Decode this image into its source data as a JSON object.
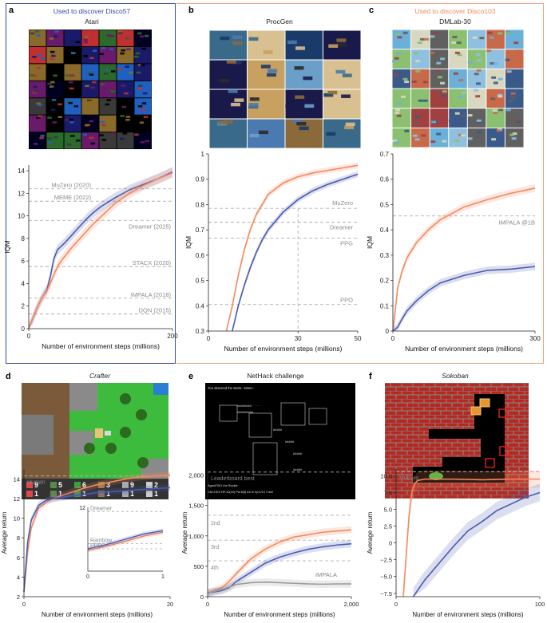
{
  "panels": {
    "a": {
      "letter": "a",
      "caption": "Used to discover Disco57",
      "title": "Atari"
    },
    "b": {
      "letter": "b",
      "title": "ProcGen"
    },
    "c": {
      "letter": "c",
      "caption": "Used to discover Disco103",
      "title": "DMLab-30"
    },
    "d": {
      "letter": "d",
      "title": "Crafter"
    },
    "e": {
      "letter": "e",
      "title": "NetHack challenge"
    },
    "f": {
      "letter": "f",
      "title": "Sokoban"
    }
  },
  "colors": {
    "disco": "#f4895f",
    "baseline": "#4a5bb0",
    "impala_gray": "#9a9a9a",
    "ref_line": "#b0b0b0",
    "frame_a": "#3b4aa0",
    "frame_c": "#f2a27c"
  },
  "nethack_screen_text": {
    "line1": "You descend the stairs.--More--",
    "status1": "Agent7001 the Rookie",
    "status2": "Dlvl:3 $:0 HP:10(10) Pw:5(5) AC:6 Xp:1/13 T:442"
  },
  "crafter_inventory": [
    "9",
    "5",
    "6",
    "3",
    "9",
    "2",
    "1",
    "1",
    "1",
    "1",
    "1",
    "1"
  ],
  "chart_data": [
    {
      "id": "a",
      "type": "line",
      "xlabel": "Number of environment steps (millions)",
      "ylabel": "IQM",
      "xlim": [
        0,
        200
      ],
      "ylim": [
        0,
        14.5
      ],
      "xticks": [
        0,
        200
      ],
      "yticks": [
        0,
        2,
        4,
        6,
        8,
        10,
        12,
        14
      ],
      "reference_lines": [
        {
          "label": "MuZero (2020)",
          "y": 12.4
        },
        {
          "label": "MEME (2022)",
          "y": 11.3
        },
        {
          "label": "Dreamer (2025)",
          "y": 9.6
        },
        {
          "label": "STACX (2020)",
          "y": 5.5
        },
        {
          "label": "IMPALA (2018)",
          "y": 2.7
        },
        {
          "label": "DQN (2015)",
          "y": 1.3
        }
      ],
      "series": [
        {
          "color_key": "baseline",
          "x": [
            0,
            5,
            10,
            15,
            20,
            25,
            30,
            35,
            40,
            45,
            50,
            60,
            70,
            80,
            90,
            100,
            120,
            140,
            160,
            180,
            200
          ],
          "values": [
            0,
            0.8,
            1.6,
            2.3,
            2.9,
            3.4,
            4.6,
            6.2,
            7.0,
            7.3,
            7.6,
            8.3,
            9.0,
            9.7,
            10.3,
            10.8,
            11.6,
            12.3,
            12.8,
            13.3,
            13.9
          ]
        },
        {
          "color_key": "disco",
          "x": [
            0,
            5,
            10,
            15,
            20,
            25,
            30,
            35,
            40,
            45,
            50,
            60,
            70,
            80,
            90,
            100,
            120,
            140,
            160,
            180,
            200
          ],
          "values": [
            0,
            0.8,
            1.6,
            2.3,
            2.9,
            3.3,
            4.0,
            4.8,
            5.5,
            6.0,
            6.4,
            7.2,
            7.9,
            8.6,
            9.3,
            9.9,
            11.1,
            12.0,
            12.7,
            13.3,
            13.8
          ]
        }
      ]
    },
    {
      "id": "b",
      "type": "line",
      "xlabel": "Number of environment steps (millions)",
      "ylabel": "IQM",
      "xlim": [
        0,
        50
      ],
      "ylim": [
        0.3,
        1.0
      ],
      "xticks": [
        0,
        30,
        50
      ],
      "yticks": [
        0.3,
        0.4,
        0.5,
        0.6,
        0.7,
        0.8,
        0.9,
        1.0
      ],
      "reference_lines": [
        {
          "label": "MuZero",
          "y": 0.785
        },
        {
          "label": "Dreamer",
          "y": 0.73
        },
        {
          "label": "PPG",
          "y": 0.667
        },
        {
          "label": "PPO",
          "y": 0.405
        }
      ],
      "vertical_line": {
        "x": 30
      },
      "series": [
        {
          "color_key": "disco",
          "x": [
            6,
            8,
            10,
            12,
            14,
            16,
            18,
            20,
            25,
            30,
            35,
            40,
            45,
            50
          ],
          "values": [
            0.3,
            0.4,
            0.52,
            0.62,
            0.7,
            0.76,
            0.8,
            0.84,
            0.885,
            0.91,
            0.925,
            0.935,
            0.945,
            0.955
          ]
        },
        {
          "color_key": "baseline",
          "x": [
            8,
            10,
            12,
            14,
            16,
            18,
            20,
            25,
            30,
            35,
            40,
            45,
            50
          ],
          "values": [
            0.3,
            0.4,
            0.48,
            0.55,
            0.61,
            0.66,
            0.7,
            0.77,
            0.82,
            0.855,
            0.88,
            0.9,
            0.92
          ]
        }
      ]
    },
    {
      "id": "c",
      "type": "line",
      "xlabel": "Number of environment steps (millions)",
      "ylabel": "IQM",
      "xlim": [
        0,
        300
      ],
      "ylim": [
        0,
        0.7
      ],
      "xticks": [
        0,
        300
      ],
      "yticks": [
        0,
        0.1,
        0.2,
        0.3,
        0.4,
        0.5,
        0.6,
        0.7
      ],
      "reference_lines": [
        {
          "label": "IMPALA @1B",
          "y": 0.455
        }
      ],
      "series": [
        {
          "color_key": "disco",
          "x": [
            0,
            5,
            10,
            20,
            30,
            50,
            75,
            100,
            150,
            200,
            250,
            300
          ],
          "values": [
            0,
            0.08,
            0.17,
            0.24,
            0.29,
            0.35,
            0.4,
            0.44,
            0.49,
            0.52,
            0.545,
            0.565
          ]
        },
        {
          "color_key": "baseline",
          "x": [
            0,
            10,
            20,
            30,
            50,
            75,
            100,
            150,
            200,
            250,
            300
          ],
          "values": [
            0,
            0.015,
            0.05,
            0.08,
            0.12,
            0.16,
            0.19,
            0.22,
            0.24,
            0.245,
            0.255
          ]
        }
      ]
    },
    {
      "id": "d",
      "type": "line",
      "xlabel": "Number of environment steps (millions)",
      "ylabel": "Average return",
      "xlim": [
        0,
        20
      ],
      "ylim": [
        2,
        15
      ],
      "xticks": [
        0,
        20
      ],
      "yticks": [
        2,
        4,
        6,
        8,
        10,
        12,
        14
      ],
      "reference_lines": [
        {
          "label": "Human",
          "y": 14.3
        }
      ],
      "series": [
        {
          "color_key": "disco",
          "x": [
            0,
            0.5,
            1,
            2,
            3,
            4,
            6,
            8,
            10,
            12,
            14,
            16,
            18,
            20
          ],
          "values": [
            2.5,
            6.5,
            9.0,
            11.0,
            11.6,
            12.0,
            12.5,
            13.0,
            13.4,
            13.7,
            14.0,
            14.2,
            14.3,
            14.4
          ]
        },
        {
          "color_key": "baseline",
          "x": [
            0,
            0.5,
            1,
            2,
            3,
            4,
            6,
            8,
            10,
            12,
            14,
            16,
            18,
            20
          ],
          "values": [
            2.5,
            7.5,
            9.8,
            11.3,
            11.8,
            12.0,
            12.2,
            12.4,
            12.6,
            12.7,
            12.8,
            12.9,
            13.0,
            13.1
          ]
        }
      ],
      "inset": {
        "xlim": [
          0,
          1
        ],
        "ylim": [
          0,
          12
        ],
        "xticks": [
          0,
          1
        ],
        "yticks": [
          12
        ],
        "reference_lines": [
          {
            "label": "Dreamer",
            "y": 11.2
          },
          {
            "label": "Rainbow",
            "y": 5.2
          },
          {
            "label": "PPO",
            "y": 4.2
          }
        ],
        "series": [
          {
            "color_key": "disco",
            "x": [
              0,
              0.25,
              0.5,
              0.75,
              1
            ],
            "values": [
              3.9,
              4.7,
              5.6,
              6.6,
              7.3
            ]
          },
          {
            "color_key": "baseline",
            "x": [
              0,
              0.25,
              0.5,
              0.75,
              1
            ],
            "values": [
              4.2,
              5.0,
              6.0,
              7.0,
              7.6
            ]
          }
        ]
      }
    },
    {
      "id": "e",
      "type": "line",
      "xlabel": "Number of environment steps (millions)",
      "ylabel": "Average return",
      "xlim": [
        0,
        2000
      ],
      "ylim": [
        0,
        2100
      ],
      "xticks": [
        0,
        2000
      ],
      "yticks": [
        0,
        500,
        1000,
        1500,
        2000
      ],
      "yticklabels": [
        "0",
        "500",
        "1,000",
        "1,500",
        "2,000"
      ],
      "xticklabels": [
        "0",
        "2,000"
      ],
      "reference_lines": [
        {
          "label": "Leaderboard best",
          "y": 2050
        },
        {
          "label": "2nd",
          "y": 1340
        },
        {
          "label": "3rd",
          "y": 930
        },
        {
          "label": "4th",
          "y": 590
        }
      ],
      "impala_label": "IMPALA",
      "series": [
        {
          "color_key": "disco",
          "x": [
            0,
            200,
            300,
            400,
            600,
            800,
            1000,
            1200,
            1400,
            1600,
            1800,
            2000
          ],
          "values": [
            60,
            150,
            250,
            380,
            620,
            780,
            900,
            980,
            1020,
            1060,
            1080,
            1100
          ]
        },
        {
          "color_key": "baseline",
          "x": [
            0,
            200,
            300,
            400,
            600,
            800,
            1000,
            1200,
            1400,
            1600,
            1800,
            2000
          ],
          "values": [
            60,
            100,
            150,
            250,
            400,
            550,
            650,
            720,
            780,
            820,
            850,
            870
          ]
        },
        {
          "color_key": "impala_gray",
          "x": [
            0,
            200,
            400,
            600,
            800,
            1000,
            1200,
            1400,
            1600,
            1800,
            2000
          ],
          "values": [
            60,
            120,
            200,
            230,
            240,
            230,
            220,
            210,
            205,
            210,
            210
          ]
        }
      ]
    },
    {
      "id": "f",
      "type": "line",
      "xlabel": "Number of environment steps (millions)",
      "ylabel": "Average return",
      "xlim": [
        0,
        100
      ],
      "ylim": [
        -8,
        11
      ],
      "xticks": [
        0,
        100
      ],
      "yticks": [
        -7.5,
        -5.0,
        -2.5,
        0,
        2.5,
        5.0,
        7.5,
        10.0
      ],
      "yticklabels": [
        "−7.5",
        "−5.0",
        "−2.5",
        "0",
        "2.5",
        "5.0",
        "7.5",
        "10.0"
      ],
      "reference_lines": [
        {
          "label": "MuZero",
          "y": 10.6
        }
      ],
      "series": [
        {
          "color_key": "disco",
          "x": [
            5,
            7,
            9,
            11,
            13,
            15,
            20,
            30,
            40,
            60,
            80,
            100
          ],
          "values": [
            -8,
            -2,
            4,
            7.5,
            8.8,
            9.3,
            9.5,
            9.5,
            9.5,
            9.4,
            9.5,
            9.5
          ]
        },
        {
          "color_key": "baseline",
          "x": [
            12,
            20,
            30,
            40,
            50,
            60,
            70,
            80,
            90,
            100
          ],
          "values": [
            -8,
            -5.5,
            -3,
            -0.5,
            1.8,
            3.2,
            4.8,
            5.8,
            6.8,
            7.5
          ]
        }
      ]
    }
  ]
}
